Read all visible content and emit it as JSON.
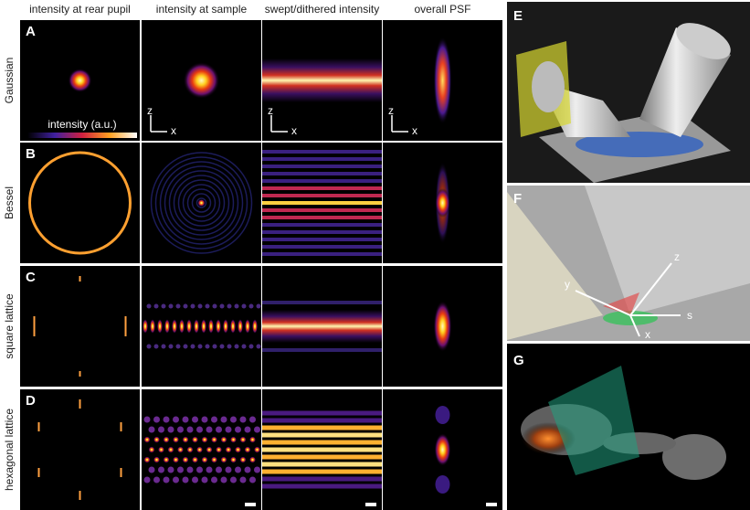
{
  "columns": [
    "intensity at rear pupil",
    "intensity at sample",
    "swept/dithered intensity",
    "overall PSF"
  ],
  "rows": [
    {
      "label": "A",
      "name": "Gaussian"
    },
    {
      "label": "B",
      "name": "Bessel"
    },
    {
      "label": "C",
      "name": "square lattice"
    },
    {
      "label": "D",
      "name": "hexagonal lattice"
    }
  ],
  "colorbar_label": "intensity (a.u.)",
  "axis_labels": {
    "z": "z",
    "x": "x"
  },
  "panels": [
    {
      "label": "E"
    },
    {
      "label": "F",
      "axes": [
        "z",
        "y",
        "s",
        "x"
      ]
    },
    {
      "label": "G"
    }
  ]
}
